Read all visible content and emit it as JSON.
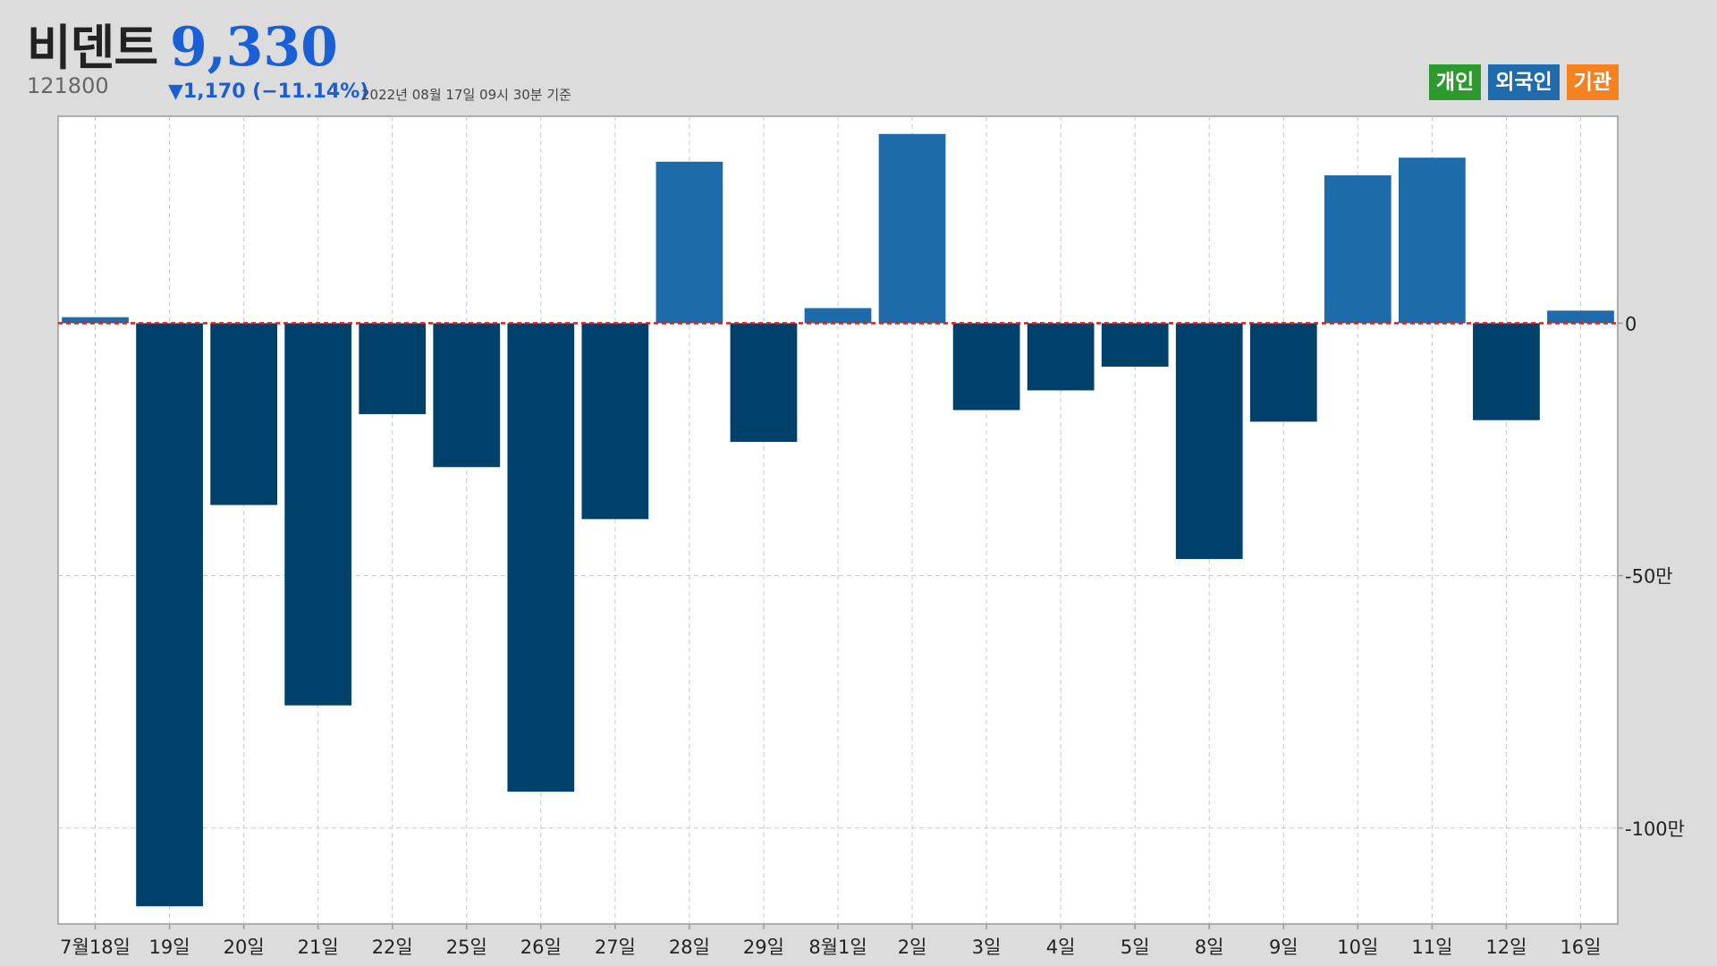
{
  "header": {
    "name": "비덴트",
    "price": "9,330",
    "code": "121800",
    "change": "▼1,170 (−11.14%)",
    "as_of": "2022년 08월 17일 09시 30분 기준"
  },
  "legend": {
    "individual": "개인",
    "foreign": "외국인",
    "institution": "기관"
  },
  "colors": {
    "positive_bar": "#1d6ba9",
    "negative_bar": "#00416b",
    "zero_line": "#d42020",
    "individual": "#2e9a2e",
    "foreign": "#1f6bab",
    "institution": "#f58220"
  },
  "chart_data": {
    "type": "bar",
    "series": [
      {
        "name": "외국인",
        "values": [
          12000,
          -1155000,
          -360000,
          -757000,
          -180000,
          -285000,
          -928000,
          -388000,
          320000,
          -235000,
          30000,
          375000,
          -172000,
          -133000,
          -86000,
          -467000,
          -195000,
          293000,
          328000,
          -192000,
          25000
        ]
      }
    ],
    "categories": [
      "7월18일",
      "19일",
      "20일",
      "21일",
      "22일",
      "25일",
      "26일",
      "27일",
      "28일",
      "29일",
      "8월1일",
      "2일",
      "3일",
      "4일",
      "5일",
      "8일",
      "9일",
      "10일",
      "11일",
      "12일",
      "16일"
    ],
    "y_ticks": [
      0,
      -500000,
      -1000000
    ],
    "y_tick_labels": [
      "0",
      "-50만",
      "-100만"
    ],
    "ylim": [
      -1190000,
      410000
    ],
    "grid": true,
    "legend_position": "top-right"
  }
}
